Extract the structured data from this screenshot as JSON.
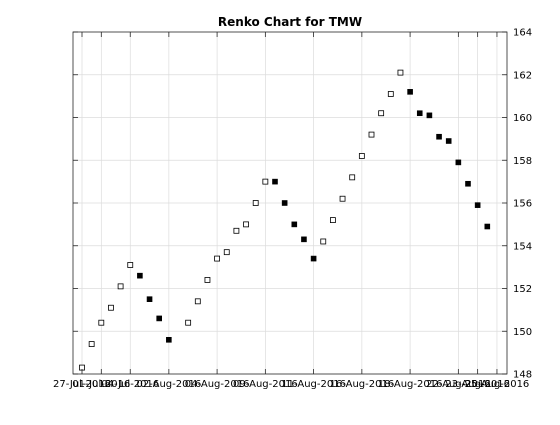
{
  "chart_data": {
    "type": "scatter",
    "title": "Renko Chart for TMW",
    "xlabel": "",
    "ylabel": "",
    "ylim": [
      148,
      164
    ],
    "y_axis_side": "right",
    "y_ticks": [
      148,
      150,
      152,
      154,
      156,
      158,
      160,
      162,
      164
    ],
    "x_ticks": [
      {
        "index": 0,
        "label": "27-Jul-2016"
      },
      {
        "index": 2,
        "label": "01-Jul-2016"
      },
      {
        "index": 5,
        "label": "04-Jul-2016"
      },
      {
        "index": 9,
        "label": "02-Aug-2016"
      },
      {
        "index": 14,
        "label": "04-Aug-2016"
      },
      {
        "index": 19,
        "label": "09-Aug-2016"
      },
      {
        "index": 24,
        "label": "11-Aug-2016"
      },
      {
        "index": 29,
        "label": "16-Aug-2016"
      },
      {
        "index": 34,
        "label": "18-Aug-2016"
      },
      {
        "index": 39,
        "label": "22-Aug-2016"
      },
      {
        "index": 41,
        "label": "23-Aug-2016"
      },
      {
        "index": 43,
        "label": "25-Aug-2016"
      }
    ],
    "grid": true,
    "legend": "none",
    "series": [
      {
        "kind": "up-brick",
        "marker": "hollow-square",
        "points": [
          [
            0,
            148.3
          ],
          [
            1,
            149.4
          ],
          [
            2,
            150.4
          ],
          [
            3,
            151.1
          ],
          [
            4,
            152.1
          ],
          [
            5,
            153.1
          ],
          [
            11,
            150.4
          ],
          [
            12,
            151.4
          ],
          [
            13,
            152.4
          ],
          [
            14,
            153.4
          ],
          [
            15,
            153.7
          ],
          [
            16,
            154.7
          ],
          [
            17,
            155.0
          ],
          [
            18,
            156.0
          ],
          [
            19,
            157.0
          ],
          [
            25,
            154.2
          ],
          [
            26,
            155.2
          ],
          [
            27,
            156.2
          ],
          [
            28,
            157.2
          ],
          [
            29,
            158.2
          ],
          [
            30,
            159.2
          ],
          [
            31,
            160.2
          ],
          [
            32,
            161.1
          ],
          [
            33,
            162.1
          ]
        ]
      },
      {
        "kind": "down-brick",
        "marker": "filled-square",
        "points": [
          [
            6,
            152.6
          ],
          [
            7,
            151.5
          ],
          [
            8,
            150.6
          ],
          [
            9,
            149.6
          ],
          [
            20,
            157.0
          ],
          [
            21,
            156.0
          ],
          [
            22,
            155.0
          ],
          [
            23,
            154.3
          ],
          [
            24,
            153.4
          ],
          [
            34,
            161.2
          ],
          [
            35,
            160.2
          ],
          [
            36,
            160.1
          ],
          [
            37,
            159.1
          ],
          [
            38,
            158.9
          ],
          [
            39,
            157.9
          ],
          [
            40,
            156.9
          ],
          [
            41,
            155.9
          ],
          [
            42,
            154.9
          ]
        ]
      }
    ]
  }
}
